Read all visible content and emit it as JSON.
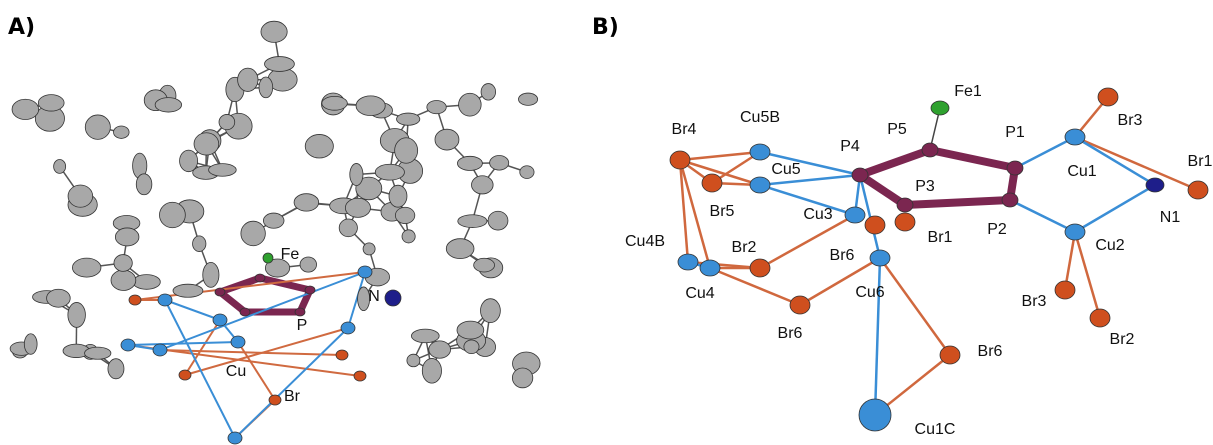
{
  "panels": [
    {
      "label": "A)",
      "atoms": [
        {
          "label": "Fe"
        },
        {
          "label": "N"
        },
        {
          "label": "P"
        },
        {
          "label": "Cu"
        },
        {
          "label": "Br"
        }
      ]
    },
    {
      "label": "B)",
      "atoms": [
        {
          "label": "Br3"
        },
        {
          "label": "Fe1"
        },
        {
          "label": "Br1"
        },
        {
          "label": "Cu5B"
        },
        {
          "label": "P5"
        },
        {
          "label": "P1"
        },
        {
          "label": "Br4"
        },
        {
          "label": "P4"
        },
        {
          "label": "Cu1"
        },
        {
          "label": "Cu5"
        },
        {
          "label": "P3"
        },
        {
          "label": "N1"
        },
        {
          "label": "Br5"
        },
        {
          "label": "Cu3"
        },
        {
          "label": "Br1"
        },
        {
          "label": "P2"
        },
        {
          "label": "Cu2"
        },
        {
          "label": "Cu4B"
        },
        {
          "label": "Br2"
        },
        {
          "label": "Br6"
        },
        {
          "label": "Cu6"
        },
        {
          "label": "Br3"
        },
        {
          "label": "Cu4"
        },
        {
          "label": "Br6"
        },
        {
          "label": "Br2"
        },
        {
          "label": "Br6"
        },
        {
          "label": "Cu1C"
        }
      ]
    }
  ]
}
